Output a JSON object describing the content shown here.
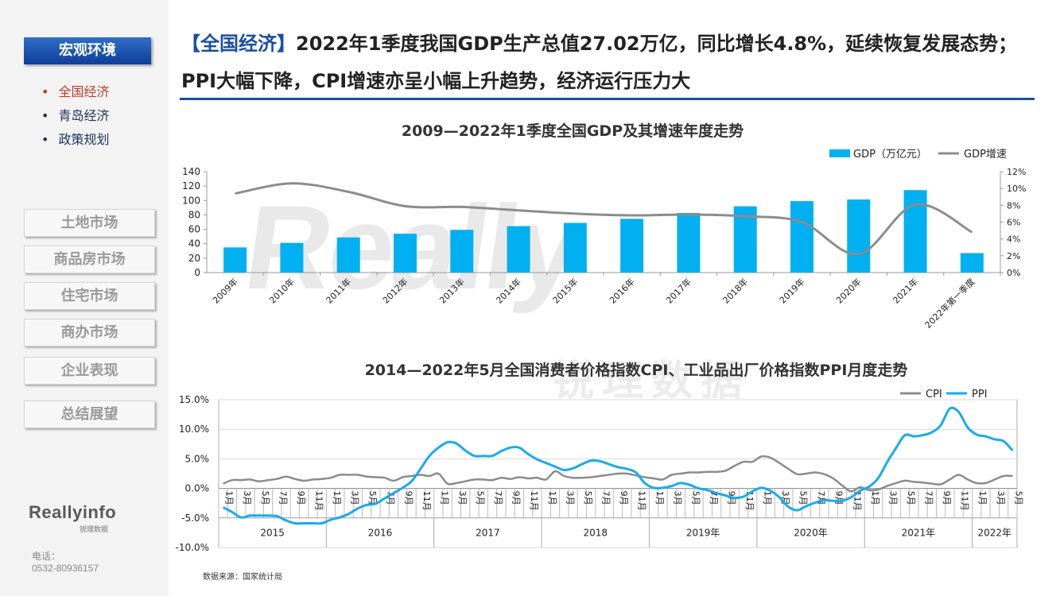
{
  "sidebar": {
    "section_title": "宏观环境",
    "sub_items": [
      {
        "label": "全国经济",
        "active": true
      },
      {
        "label": "青岛经济",
        "active": false
      },
      {
        "label": "政策规划",
        "active": false
      }
    ],
    "nav_buttons": [
      "土地市场",
      "商品房市场",
      "住宅市场",
      "商办市场",
      "企业表现",
      "总结展望"
    ],
    "logo_main": "Reallyinfo",
    "logo_sub": "锐理数据",
    "phone_label": "电话：",
    "phone_number": "0532-80936157"
  },
  "header": {
    "bracket_label": "【全国经济】",
    "line1": "2022年1季度我国GDP生产总值27.02万亿，同比增长4.8%，延续恢复发展态势；",
    "line2": "PPI大幅下降，CPI增速亦呈小幅上升趋势，经济运行压力大"
  },
  "watermark": {
    "text": "Really",
    "sub": "锐理数据"
  },
  "source_note": "数据来源：国家统计局",
  "colors": {
    "accent": "#1a4ea0",
    "bar": "#00b0f0",
    "gdp_line": "#8c8c8c",
    "cpi": "#8c8c8c",
    "ppi": "#19aaf0",
    "active_item": "#c0392b"
  },
  "chart_data": [
    {
      "type": "bar",
      "title": "2009—2022年1季度全国GDP及其增速年度走势",
      "categories": [
        "2009年",
        "2010年",
        "2011年",
        "2012年",
        "2013年",
        "2014年",
        "2015年",
        "2016年",
        "2017年",
        "2018年",
        "2019年",
        "2020年",
        "2021年",
        "2022年第一季度"
      ],
      "series": [
        {
          "name": "GDP（万亿元）",
          "type": "bar",
          "axis": "left",
          "values": [
            34.9,
            41.2,
            48.8,
            53.9,
            59.3,
            64.4,
            68.9,
            74.6,
            82.7,
            91.9,
            99.1,
            101.4,
            114.4,
            27.0
          ]
        },
        {
          "name": "GDP增速",
          "type": "line",
          "axis": "right",
          "values": [
            9.4,
            10.6,
            9.6,
            7.9,
            7.8,
            7.4,
            7.0,
            6.8,
            6.9,
            6.7,
            6.0,
            2.2,
            8.1,
            4.8
          ]
        }
      ],
      "y_left": {
        "min": 0,
        "max": 140,
        "ticks": [
          "0",
          "20",
          "40",
          "60",
          "80",
          "100",
          "120",
          "140"
        ]
      },
      "y_right": {
        "min": 0,
        "max": 12,
        "ticks": [
          "0%",
          "2%",
          "4%",
          "6%",
          "8%",
          "10%",
          "12%"
        ]
      }
    },
    {
      "type": "line",
      "title": "2014—2022年5月全国消费者价格指数CPI、工业品出厂价格指数PPI月度走势",
      "y_min": -10,
      "y_max": 15,
      "y_ticks": [
        "-10.0%",
        "-5.0%",
        "0.0%",
        "5.0%",
        "10.0%",
        "15.0%"
      ],
      "month_labels": [
        "1月",
        "3月",
        "5月",
        "7月",
        "9月",
        "11月"
      ],
      "groups": [
        {
          "label": "2015",
          "months": 12
        },
        {
          "label": "2016",
          "months": 12
        },
        {
          "label": "2017",
          "months": 12
        },
        {
          "label": "2018",
          "months": 12
        },
        {
          "label": "2019年",
          "months": 12
        },
        {
          "label": "2020年",
          "months": 12
        },
        {
          "label": "2021年",
          "months": 12
        },
        {
          "label": "2022年",
          "months": 5
        }
      ],
      "series": [
        {
          "name": "CPI",
          "values": [
            0.8,
            1.4,
            1.4,
            1.5,
            1.2,
            1.4,
            1.6,
            2.0,
            1.6,
            1.3,
            1.5,
            1.6,
            1.8,
            2.3,
            2.3,
            2.3,
            2.0,
            1.9,
            1.8,
            1.3,
            1.9,
            2.1,
            2.3,
            2.1,
            2.5,
            0.8,
            0.9,
            1.2,
            1.5,
            1.5,
            1.4,
            1.8,
            1.6,
            1.9,
            1.7,
            1.8,
            1.5,
            2.9,
            2.1,
            1.8,
            1.8,
            1.9,
            2.1,
            2.3,
            2.5,
            2.5,
            2.2,
            1.9,
            1.7,
            1.5,
            2.3,
            2.5,
            2.7,
            2.7,
            2.8,
            2.8,
            3.0,
            3.8,
            4.5,
            4.5,
            5.4,
            5.2,
            4.3,
            3.3,
            2.4,
            2.5,
            2.7,
            2.4,
            1.7,
            0.5,
            -0.5,
            0.2,
            -0.3,
            -0.2,
            0.4,
            0.9,
            1.3,
            1.1,
            1.0,
            0.8,
            0.7,
            1.5,
            2.3,
            1.5,
            0.9,
            0.9,
            1.5,
            2.1,
            2.1
          ]
        },
        {
          "name": "PPI",
          "values": [
            -3.2,
            -4.0,
            -4.9,
            -4.6,
            -4.6,
            -4.6,
            -4.7,
            -5.4,
            -5.9,
            -5.9,
            -5.9,
            -5.9,
            -5.3,
            -4.9,
            -4.3,
            -3.4,
            -2.8,
            -2.6,
            -1.7,
            -0.8,
            0.1,
            1.2,
            3.3,
            5.5,
            6.9,
            7.8,
            7.6,
            6.4,
            5.5,
            5.5,
            5.5,
            6.3,
            6.9,
            6.9,
            5.8,
            4.9,
            4.3,
            3.7,
            3.1,
            3.4,
            4.1,
            4.7,
            4.6,
            4.1,
            3.6,
            3.3,
            2.7,
            0.9,
            0.1,
            0.1,
            0.4,
            0.9,
            0.6,
            0.0,
            -0.3,
            -0.8,
            -1.2,
            -1.6,
            -1.4,
            -0.5,
            0.1,
            -0.4,
            -1.5,
            -3.1,
            -3.7,
            -3.0,
            -2.4,
            -2.0,
            -2.1,
            -2.1,
            -1.5,
            -0.4,
            0.3,
            1.7,
            4.4,
            6.8,
            9.0,
            8.8,
            9.0,
            9.5,
            10.7,
            13.5,
            12.9,
            10.3,
            9.1,
            8.8,
            8.3,
            8.0,
            6.4
          ]
        }
      ]
    }
  ]
}
